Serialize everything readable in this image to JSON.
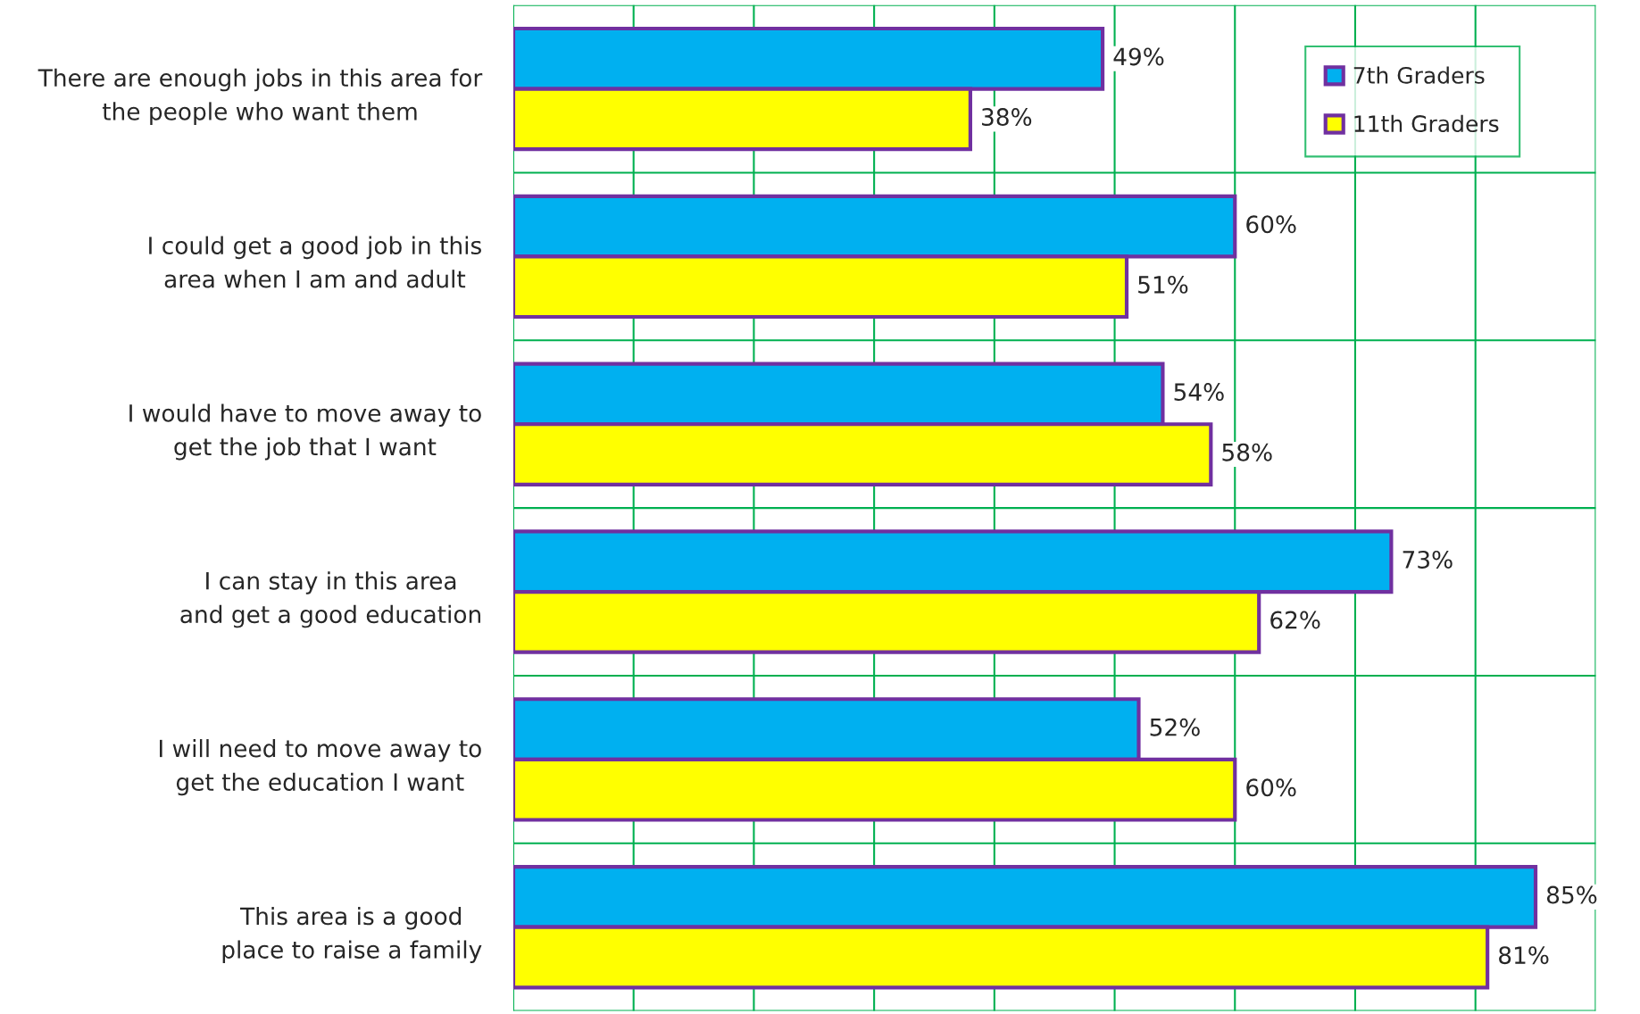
{
  "chart_data": {
    "type": "bar",
    "orientation": "horizontal",
    "categories": [
      "There are enough jobs in this area for\nthe people who want them",
      "I could get a good job in this\narea when I am and adult",
      "I would have to move away to\nget the job that I want",
      "I can stay in this area\nand get a good education",
      "I will need to move away to\nget the education I want",
      "This area is a good\nplace to raise a family"
    ],
    "series": [
      {
        "name": "7th Graders",
        "color": "#00b0f0",
        "values": [
          49,
          60,
          54,
          73,
          52,
          85
        ],
        "value_labels": [
          "49%",
          "60%",
          "54%",
          "73%",
          "52%",
          "85%"
        ]
      },
      {
        "name": "11th Graders",
        "color": "#ffff00",
        "values": [
          38,
          51,
          58,
          62,
          60,
          81
        ],
        "value_labels": [
          "38%",
          "51%",
          "58%",
          "62%",
          "60%",
          "81%"
        ]
      }
    ],
    "xlim": [
      0,
      90
    ],
    "xticks": [
      {
        "value": 0,
        "label": null
      },
      {
        "value": 10,
        "label": null
      },
      {
        "value": 20,
        "label": null
      },
      {
        "value": 30,
        "label": null
      },
      {
        "value": 40,
        "label": null
      },
      {
        "value": 50,
        "label": null
      },
      {
        "value": 60,
        "label": null
      },
      {
        "value": 70,
        "label": null
      },
      {
        "value": 80,
        "label": null
      },
      {
        "value": 90,
        "label": null
      }
    ],
    "grid": true,
    "legend": "top right"
  }
}
